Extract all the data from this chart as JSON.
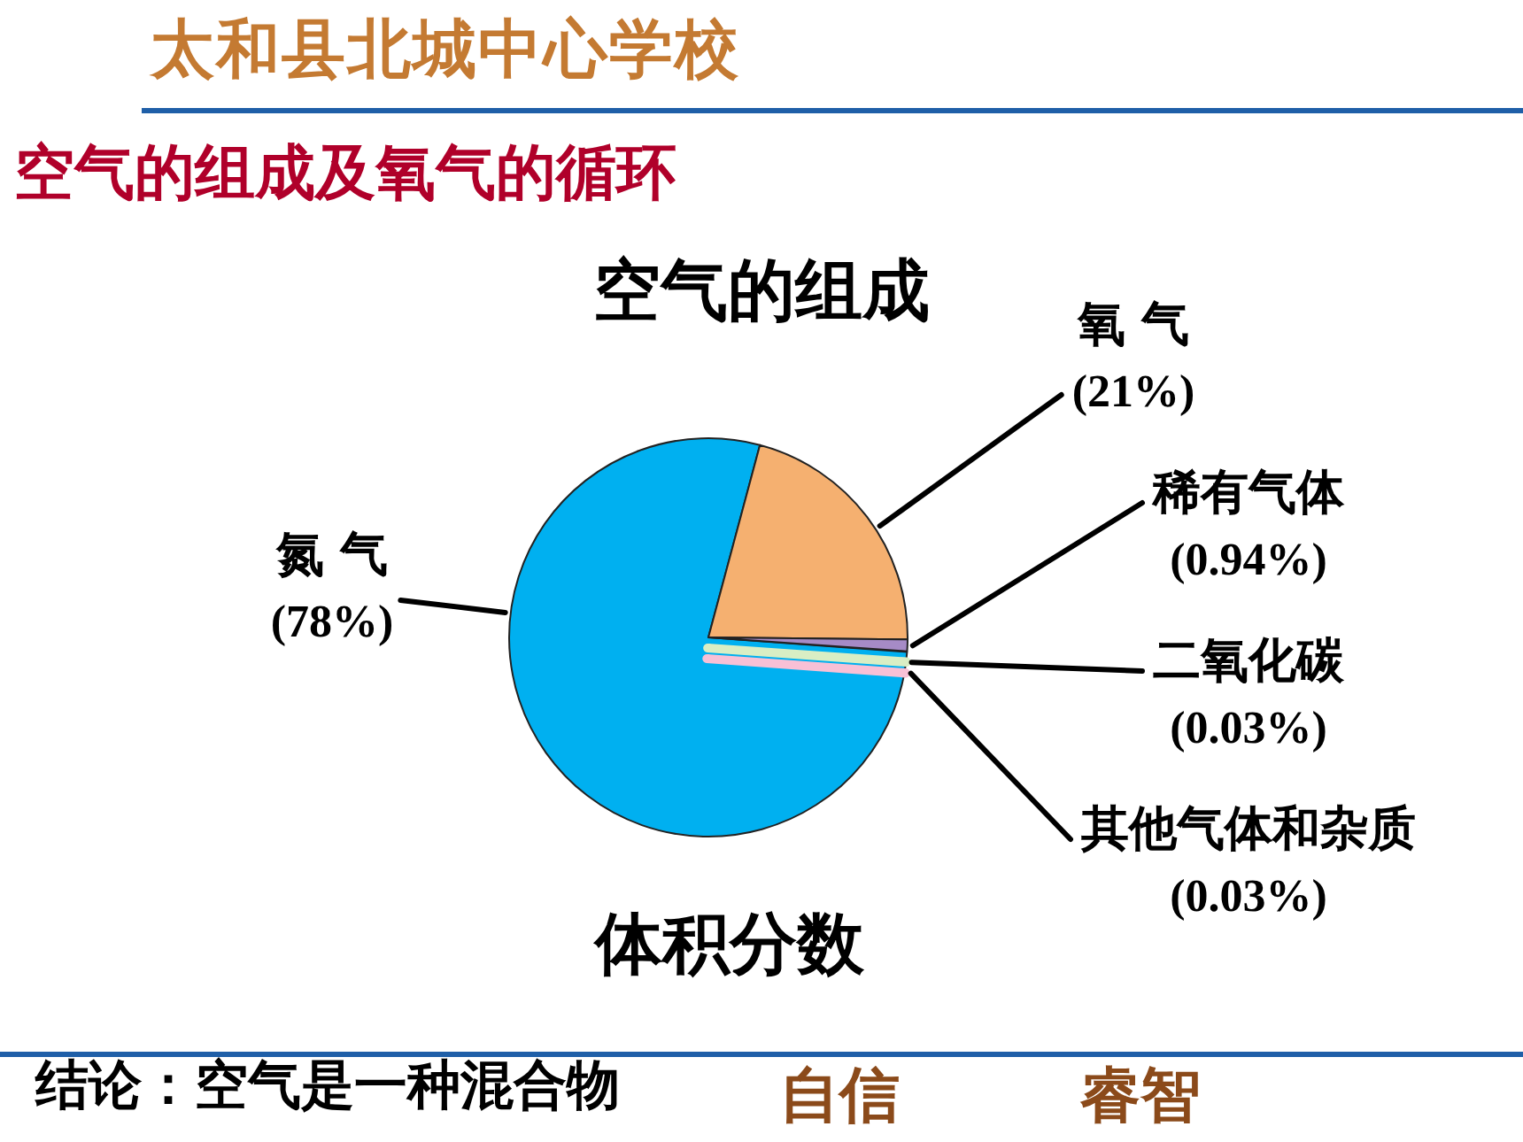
{
  "chart_data": {
    "type": "pie",
    "title": "空气的组成及氧气的循环",
    "subtitle": "空气的组成",
    "categories": [
      "氮 气",
      "氧 气",
      "稀有气体",
      "二氧化碳",
      "其他气体和杂质"
    ],
    "values": [
      78,
      21,
      0.94,
      0.03,
      0.03
    ],
    "colors": [
      "#00b0f0",
      "#f5b070",
      "#a68bc6",
      "#d9eec4",
      "#f8c0d6"
    ],
    "value_labels": [
      "(78%)",
      "(21%)",
      "(0.94%)",
      "(0.03%)",
      "(0.03%)"
    ],
    "annotations": [
      "体积分数",
      "结论：空气是一种混合物",
      "太和县北城中心学校",
      "自信",
      "睿智"
    ]
  }
}
